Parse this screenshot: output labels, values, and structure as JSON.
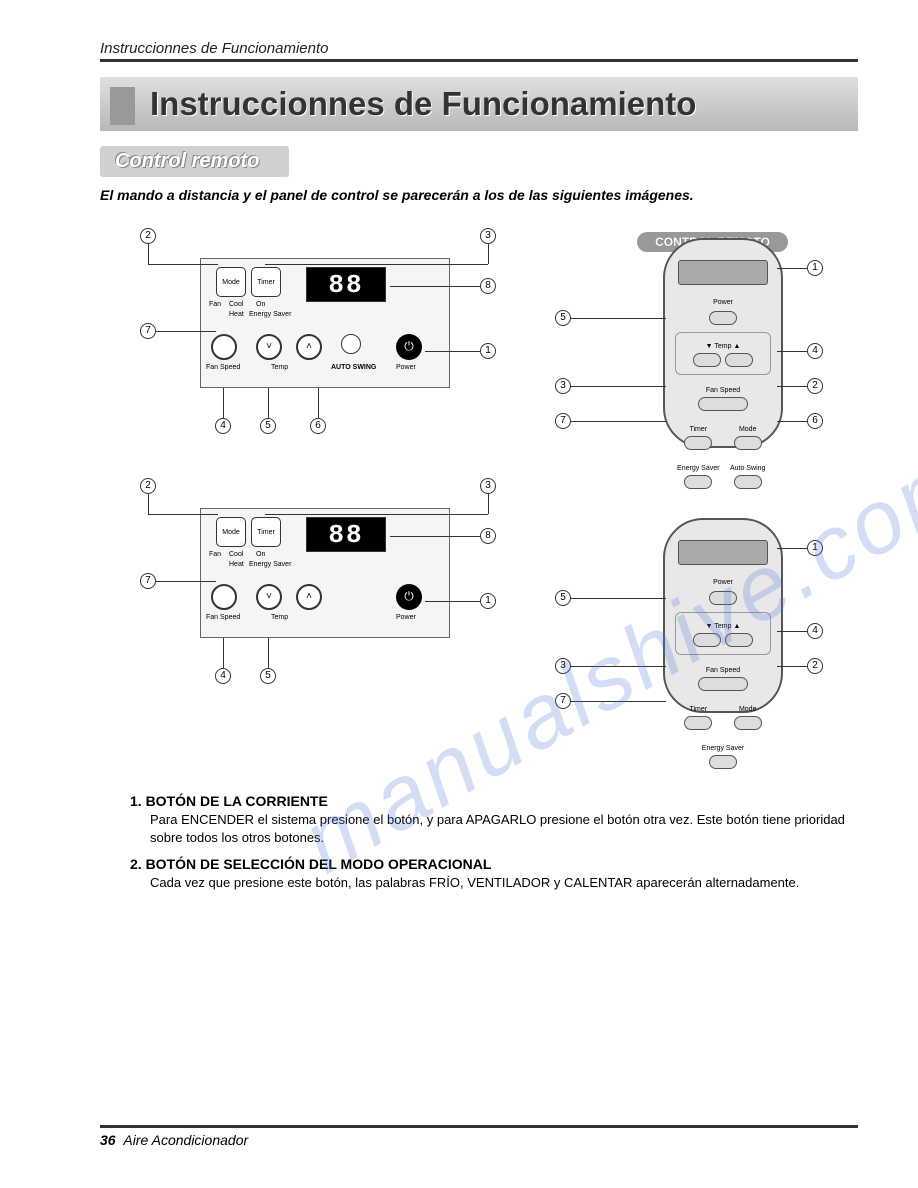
{
  "header": "Instruccionnes de Funcionamiento",
  "title": "Instruccionnes de Funcionamiento",
  "subtitle": "Control remoto",
  "intro": "El mando a distancia y el panel de control se parecerán a los de las siguientes imágenes.",
  "remote_label": "CONTROL REMOTO",
  "display_value": "88",
  "panel_labels": {
    "mode": "Mode",
    "timer": "Timer",
    "fan": "Fan",
    "cool": "Cool",
    "on": "On",
    "heat": "Heat",
    "energy_saver": "Energy Saver",
    "fan_speed": "Fan Speed",
    "temp": "Temp",
    "auto_swing": "AUTO SWING",
    "power": "Power"
  },
  "remote_labels": {
    "power": "Power",
    "temp": "Temp",
    "fan_speed": "Fan Speed",
    "timer": "Timer",
    "mode": "Mode",
    "energy_saver": "Energy Saver",
    "auto_swing": "Auto Swing"
  },
  "callouts": {
    "c1": "1",
    "c2": "2",
    "c3": "3",
    "c4": "4",
    "c5": "5",
    "c6": "6",
    "c7": "7",
    "c8": "8"
  },
  "sections": [
    {
      "num": "1.",
      "title": "BOTÓN DE LA CORRIENTE",
      "desc": "Para ENCENDER el sistema presione el botón, y para APAGARLO presione el botón otra vez. Este botón tiene prioridad sobre todos los otros botones."
    },
    {
      "num": "2.",
      "title": "BOTÓN DE SELECCIÓN DEL MODO OPERACIONAL",
      "desc": "Cada vez que presione este botón, las palabras FRÍO, VENTILADOR y CALENTAR aparecerán alternadamente."
    }
  ],
  "footer": {
    "page": "36",
    "product": "Aire Acondicionador"
  },
  "watermark": "manualshive.com",
  "colors": {
    "banner_grad_top": "#e0e0e0",
    "banner_grad_bot": "#b8b8b8",
    "watermark": "rgba(80,120,220,0.25)"
  }
}
